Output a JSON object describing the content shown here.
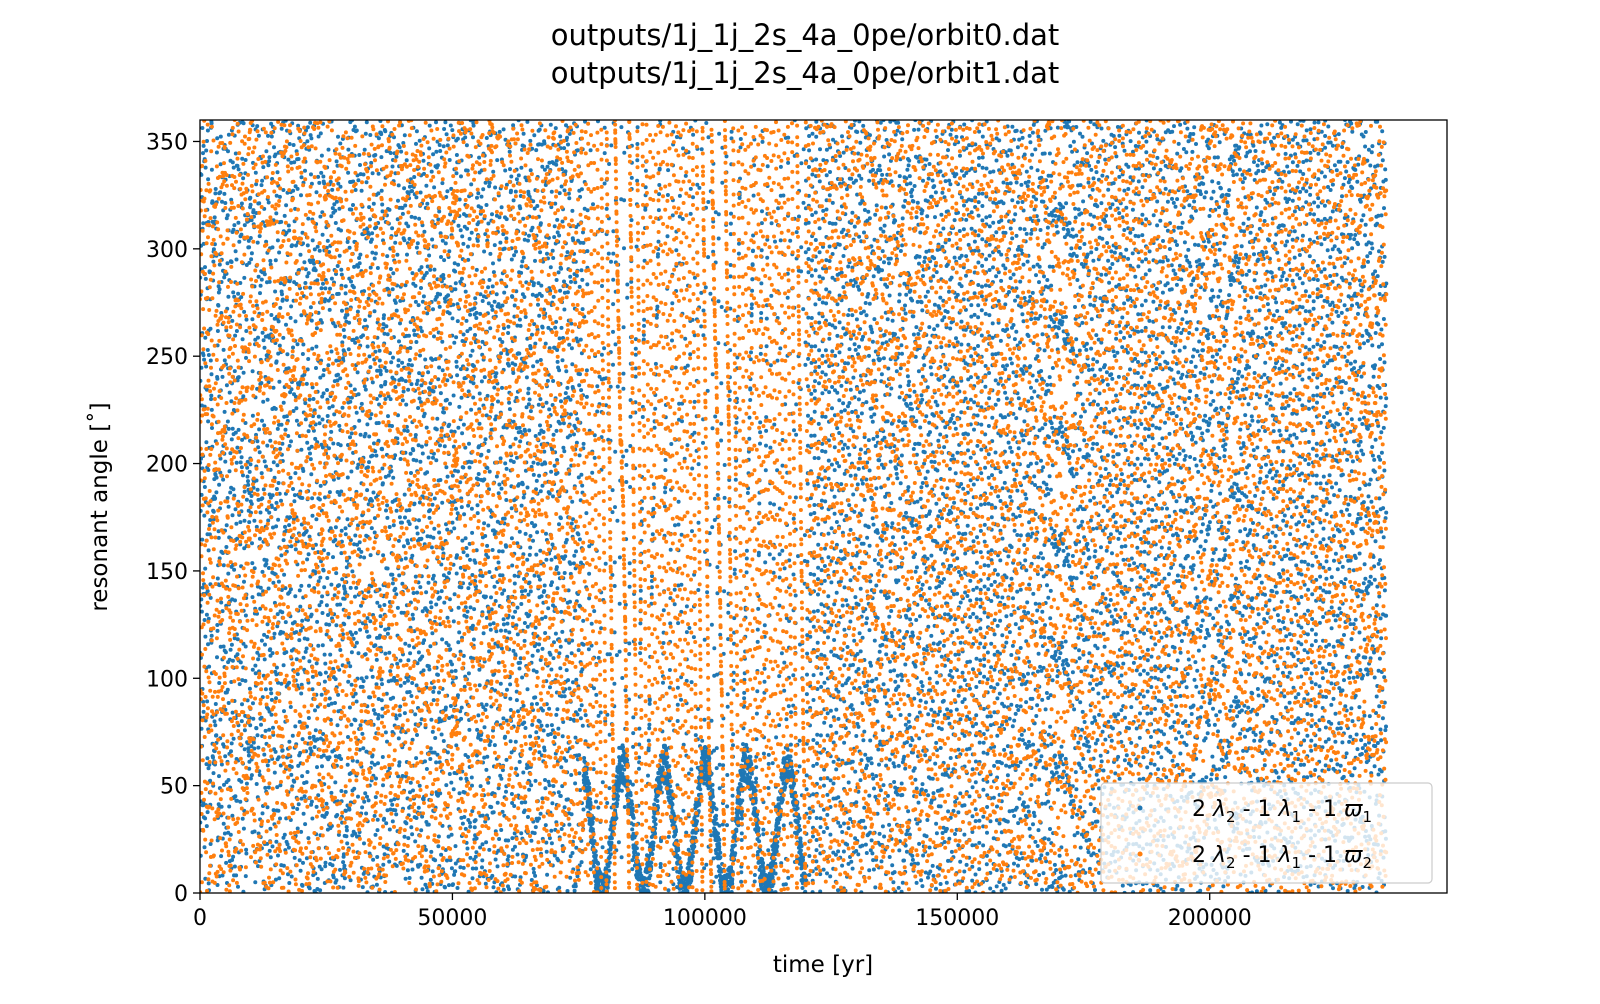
{
  "chart_data": {
    "type": "scatter",
    "title_lines": [
      "outputs/1j_1j_2s_4a_0pe/orbit0.dat",
      "outputs/1j_1j_2s_4a_0pe/orbit1.dat"
    ],
    "xlabel": "time [yr]",
    "ylabel": "resonant angle [˚]",
    "xlim": [
      0,
      247000
    ],
    "ylim": [
      0,
      360
    ],
    "x_ticks": [
      0,
      50000,
      100000,
      150000,
      200000
    ],
    "y_ticks": [
      0,
      50,
      100,
      150,
      200,
      250,
      300,
      350
    ],
    "legend_position": "lower-right",
    "grid": false,
    "time_span": [
      0,
      235000
    ],
    "series": [
      {
        "name_parts": {
          "c1": "2 ",
          "s1": "λ",
          "n1": "2",
          "c2": " - 1 ",
          "s2": "λ",
          "n2": "1",
          "c3": " - 1 ",
          "s3": "ϖ",
          "n3": "1"
        },
        "color": "#1f77b4"
      },
      {
        "name_parts": {
          "c1": "2 ",
          "s1": "λ",
          "n1": "2",
          "c2": " - 1 ",
          "s2": "λ",
          "n2": "1",
          "c3": " - 1 ",
          "s3": "ϖ",
          "n3": "2"
        },
        "color": "#ff7f0e"
      }
    ]
  }
}
